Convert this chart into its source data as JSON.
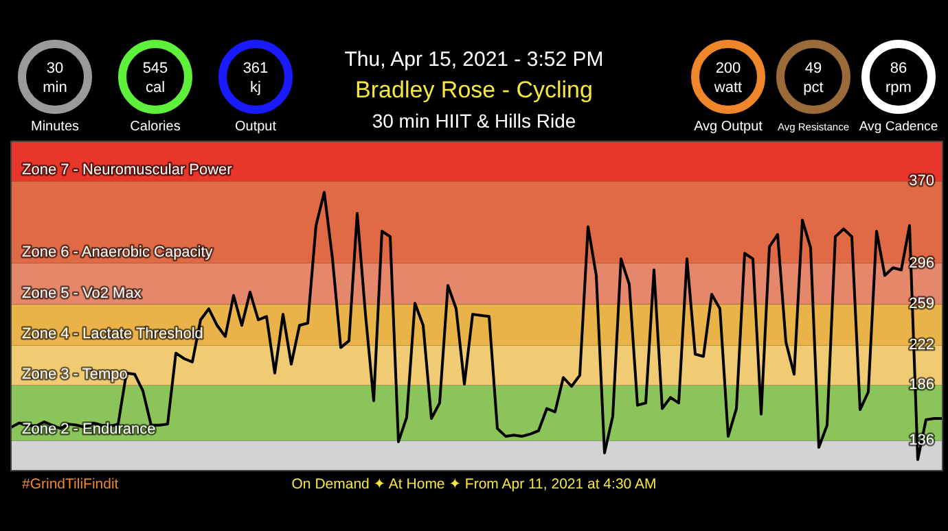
{
  "chart_data": [
    {
      "type": "other",
      "title": "Thu, Apr 15, 2021 - 3:52 PM",
      "subtitle": "Bradley Rose - Cycling",
      "annotations": [
        "30 min HIIT & Hills Ride"
      ],
      "categories": [
        "Minutes",
        "Calories",
        "Output",
        "Avg Output",
        "Avg Resistance",
        "Avg Cadence"
      ],
      "value_labels": [
        "30 min",
        "545 cal",
        "361 kj",
        "200 watt",
        "49 pct",
        "86 rpm"
      ],
      "colors": [
        "#9a9a9a",
        "#5ef03a",
        "#1a1aff",
        "#f0862a",
        "#9a6a3a",
        "#ffffff"
      ]
    },
    {
      "type": "line",
      "tick_labels": "y",
      "ylim": [
        109,
        406
      ],
      "yticks": [
        136,
        186,
        222,
        259,
        296,
        370
      ],
      "categories": [
        null,
        null,
        null,
        null,
        null,
        null,
        null,
        null,
        null,
        null,
        null,
        null,
        null,
        null,
        null,
        null,
        null,
        null,
        null,
        null,
        null,
        null,
        null,
        null,
        null,
        null,
        null,
        null,
        null,
        null,
        null,
        null,
        null,
        null,
        null,
        null,
        null,
        null,
        null,
        null,
        null,
        null,
        null,
        null,
        null,
        null,
        null,
        null,
        null,
        null,
        null,
        null,
        null,
        null,
        null,
        null,
        null,
        null,
        null,
        null,
        null,
        null,
        null,
        null,
        null,
        null,
        null,
        null,
        null,
        null,
        null,
        null,
        null,
        null,
        null,
        null,
        null,
        null,
        null,
        null,
        null,
        null,
        null,
        null,
        null,
        null,
        null,
        null,
        null,
        null,
        null,
        null,
        null,
        null,
        null,
        null,
        null,
        null,
        null,
        null,
        null,
        null,
        null,
        null,
        null,
        null,
        null,
        null,
        null,
        null,
        null,
        null,
        null,
        null
      ],
      "series": [
        {
          "color": "#000000",
          "values": [
            148,
            152,
            150,
            149,
            153,
            150,
            147,
            151,
            150,
            148,
            152,
            150,
            149,
            151,
            197,
            196,
            181,
            150,
            150,
            151,
            215,
            210,
            207,
            245,
            255,
            240,
            230,
            267,
            240,
            270,
            245,
            248,
            197,
            250,
            205,
            240,
            242,
            330,
            360,
            300,
            220,
            226,
            341,
            250,
            172,
            325,
            320,
            135,
            157,
            260,
            240,
            156,
            170,
            276,
            255,
            187,
            250,
            249,
            248,
            147,
            140,
            141,
            140,
            142,
            145,
            165,
            162,
            193,
            185,
            195,
            329,
            285,
            125,
            158,
            300,
            277,
            168,
            170,
            290,
            165,
            175,
            170,
            300,
            214,
            212,
            268,
            255,
            140,
            165,
            305,
            300,
            160,
            311,
            322,
            225,
            196,
            335,
            310,
            130,
            150,
            320,
            327,
            320,
            164,
            180,
            325,
            285,
            292,
            290,
            330,
            119,
            155,
            156,
            156
          ]
        }
      ],
      "bands": [
        {
          "axis": "y",
          "from": 109,
          "to": 136,
          "label": null,
          "color": "#d3d3d3"
        },
        {
          "axis": "y",
          "from": 136,
          "to": 186,
          "label": "Zone 2 - Endurance",
          "color": "#8bc45a"
        },
        {
          "axis": "y",
          "from": 186,
          "to": 222,
          "label": "Zone 3 - Tempo",
          "color": "#f1cb73"
        },
        {
          "axis": "y",
          "from": 222,
          "to": 259,
          "label": "Zone 4 - Lactate Threshold",
          "color": "#eab34a"
        },
        {
          "axis": "y",
          "from": 259,
          "to": 296,
          "label": "Zone 5 - Vo2 Max",
          "color": "#e5876a"
        },
        {
          "axis": "y",
          "from": 296,
          "to": 370,
          "label": "Zone 6 - Anaerobic Capacity",
          "color": "#e06a45"
        },
        {
          "axis": "y",
          "from": 370,
          "to": 406,
          "label": "Zone 7 - Neuromuscular Power",
          "color": "#e8372a"
        }
      ],
      "annotations": [
        "#GrindTiliFindit",
        "On Demand ✦ At Home ✦ From Apr 11, 2021 at 4:30 AM"
      ]
    }
  ]
}
